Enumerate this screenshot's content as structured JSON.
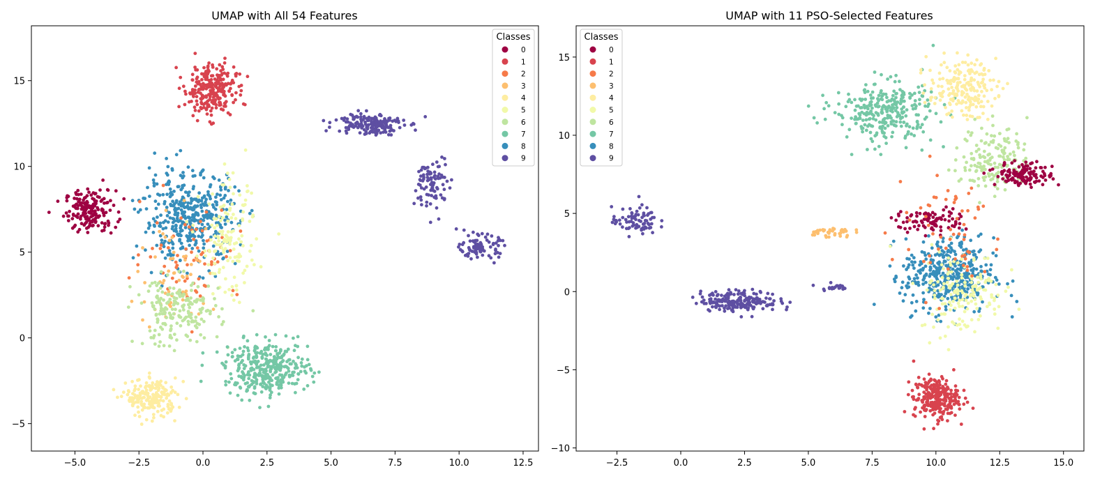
{
  "palette": {
    "0": "#9e0142",
    "1": "#d8434e",
    "2": "#f67a49",
    "3": "#fdbf6f",
    "4": "#feeda1",
    "5": "#f1f9a9",
    "6": "#bfe5a0",
    "7": "#74c7a5",
    "8": "#378ebb",
    "9": "#5e4fa2"
  },
  "chart_data": [
    {
      "type": "scatter",
      "title": "UMAP with All 54 Features",
      "xlabel": "",
      "ylabel": "",
      "xlim": [
        -6.7,
        13.1
      ],
      "ylim": [
        -6.6,
        18.2
      ],
      "xticks": [
        -5.0,
        -2.5,
        0.0,
        2.5,
        5.0,
        7.5,
        10.0,
        12.5
      ],
      "xtick_labels": [
        "−5.0",
        "−2.5",
        "0.0",
        "2.5",
        "5.0",
        "7.5",
        "10.0",
        "12.5"
      ],
      "yticks": [
        -5,
        0,
        5,
        10,
        15
      ],
      "ytick_labels": [
        "−5",
        "0",
        "5",
        "10",
        "15"
      ],
      "grid": false,
      "legend": {
        "title": "Classes",
        "position": "top-right",
        "labels": [
          "0",
          "1",
          "2",
          "3",
          "4",
          "5",
          "6",
          "7",
          "8",
          "9"
        ]
      },
      "clusters": [
        {
          "class": "0",
          "center": [
            -4.4,
            7.4
          ],
          "spread": [
            0.9,
            1.1
          ],
          "count": 180
        },
        {
          "class": "1",
          "center": [
            0.3,
            14.5
          ],
          "spread": [
            0.9,
            1.4
          ],
          "count": 260
        },
        {
          "class": "8",
          "center": [
            -0.5,
            7.0
          ],
          "spread": [
            1.7,
            2.4
          ],
          "count": 420
        },
        {
          "class": "2",
          "center": [
            -0.5,
            5.0
          ],
          "spread": [
            1.7,
            2.5
          ],
          "count": 70
        },
        {
          "class": "3",
          "center": [
            -1.0,
            3.5
          ],
          "spread": [
            1.5,
            3.0
          ],
          "count": 60
        },
        {
          "class": "4",
          "center": [
            -2.0,
            -3.5
          ],
          "spread": [
            0.9,
            1.0
          ],
          "count": 200
        },
        {
          "class": "5",
          "center": [
            1.0,
            5.5
          ],
          "spread": [
            1.0,
            3.0
          ],
          "count": 140
        },
        {
          "class": "6",
          "center": [
            -1.0,
            1.5
          ],
          "spread": [
            1.5,
            1.8
          ],
          "count": 190
        },
        {
          "class": "7",
          "center": [
            2.5,
            -1.8
          ],
          "spread": [
            1.5,
            1.4
          ],
          "count": 360
        },
        {
          "class": "9",
          "center": [
            6.5,
            12.5
          ],
          "spread": [
            1.2,
            0.6
          ],
          "count": 170
        },
        {
          "class": "9",
          "center": [
            9.0,
            9.0
          ],
          "spread": [
            0.6,
            1.5
          ],
          "count": 90
        },
        {
          "class": "9",
          "center": [
            10.8,
            5.3
          ],
          "spread": [
            0.7,
            0.6
          ],
          "count": 90
        }
      ]
    },
    {
      "type": "scatter",
      "title": "UMAP with 11 PSO-Selected Features",
      "xlabel": "",
      "ylabel": "",
      "xlim": [
        -4.1,
        15.8
      ],
      "ylim": [
        -10.2,
        17.0
      ],
      "xticks": [
        -2.5,
        0.0,
        2.5,
        5.0,
        7.5,
        10.0,
        12.5,
        15.0
      ],
      "xtick_labels": [
        "−2.5",
        "0.0",
        "2.5",
        "5.0",
        "7.5",
        "10.0",
        "12.5",
        "15.0"
      ],
      "yticks": [
        -10,
        -5,
        0,
        5,
        10,
        15
      ],
      "ytick_labels": [
        "−10",
        "−5",
        "0",
        "5",
        "10",
        "15"
      ],
      "grid": false,
      "legend": {
        "title": "Classes",
        "position": "top-left",
        "labels": [
          "0",
          "1",
          "2",
          "3",
          "4",
          "5",
          "6",
          "7",
          "8",
          "9"
        ]
      },
      "clusters": [
        {
          "class": "7",
          "center": [
            8.0,
            11.5
          ],
          "spread": [
            1.8,
            1.8
          ],
          "count": 300
        },
        {
          "class": "4",
          "center": [
            11.0,
            13.0
          ],
          "spread": [
            1.2,
            1.6
          ],
          "count": 200
        },
        {
          "class": "6",
          "center": [
            12.3,
            8.5
          ],
          "spread": [
            1.2,
            2.0
          ],
          "count": 160
        },
        {
          "class": "0",
          "center": [
            13.5,
            7.5
          ],
          "spread": [
            1.0,
            0.7
          ],
          "count": 130
        },
        {
          "class": "0",
          "center": [
            9.8,
            4.5
          ],
          "spread": [
            1.3,
            0.7
          ],
          "count": 90
        },
        {
          "class": "8",
          "center": [
            10.5,
            1.0
          ],
          "spread": [
            1.6,
            2.2
          ],
          "count": 420
        },
        {
          "class": "5",
          "center": [
            11.0,
            0.0
          ],
          "spread": [
            1.5,
            2.5
          ],
          "count": 160
        },
        {
          "class": "1",
          "center": [
            10.0,
            -6.8
          ],
          "spread": [
            0.8,
            1.2
          ],
          "count": 260
        },
        {
          "class": "2",
          "center": [
            10.5,
            4.0
          ],
          "spread": [
            2.0,
            4.0
          ],
          "count": 60
        },
        {
          "class": "9",
          "center": [
            -1.8,
            4.5
          ],
          "spread": [
            0.8,
            0.8
          ],
          "count": 80
        },
        {
          "class": "9",
          "center": [
            2.3,
            -0.6
          ],
          "spread": [
            1.4,
            0.6
          ],
          "count": 200
        },
        {
          "class": "9",
          "center": [
            6.0,
            0.3
          ],
          "spread": [
            0.5,
            0.2
          ],
          "count": 20
        },
        {
          "class": "3",
          "center": [
            5.8,
            3.8
          ],
          "spread": [
            0.8,
            0.3
          ],
          "count": 40
        }
      ]
    }
  ]
}
